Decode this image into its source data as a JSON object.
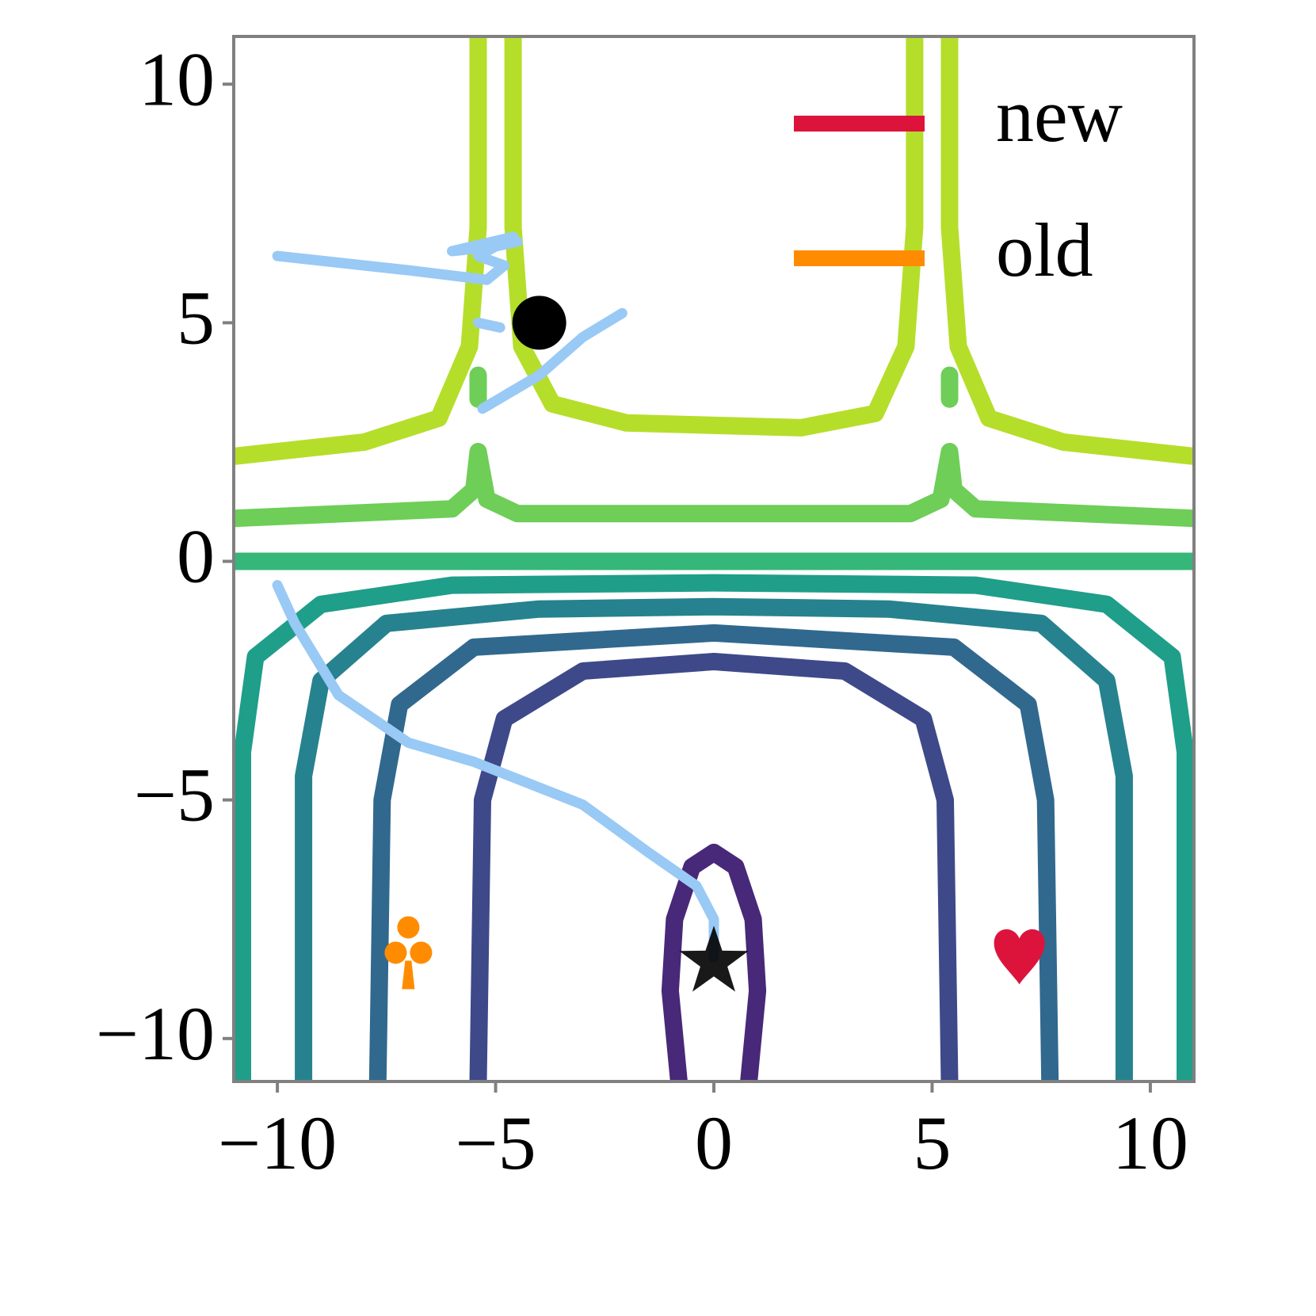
{
  "chart_data": {
    "type": "contour",
    "xlim": [
      -11,
      11
    ],
    "ylim": [
      -10.9,
      11
    ],
    "xticks": [
      {
        "value": -10,
        "label": "−10"
      },
      {
        "value": -5,
        "label": "−5"
      },
      0,
      5,
      10
    ],
    "yticks": [
      {
        "value": -10,
        "label": "−10"
      },
      {
        "value": -5,
        "label": "−5"
      },
      0,
      5,
      10
    ],
    "legend": "upper right",
    "contours": [
      {
        "color": "#b5de2b",
        "x": [
          -11,
          -8,
          -6.3,
          -5.6,
          -5.4,
          -5.4,
          null,
          -4.6,
          -4.6,
          -4.4,
          -3.7,
          -2,
          2,
          3.7,
          4.4,
          4.6,
          4.6,
          null,
          5.4,
          5.4,
          5.6,
          6.3,
          8,
          11
        ],
        "y": [
          2.2,
          2.5,
          3,
          4.5,
          7,
          11,
          null,
          11,
          7,
          4.5,
          3.3,
          2.9,
          2.8,
          3.1,
          4.5,
          7,
          11,
          null,
          11,
          7,
          4.5,
          3,
          2.5,
          2.2
        ]
      },
      {
        "color": "#6ece58",
        "x": [
          -11,
          -6,
          -5.5,
          -5.4,
          null,
          -5.4,
          -5.2,
          -4.5,
          4.5,
          5.2,
          5.4,
          null,
          5.4,
          5.5,
          6,
          11,
          null,
          -5.4,
          -5.4,
          null,
          5.4,
          5.4
        ],
        "y": [
          0.9,
          1.1,
          1.5,
          2.3,
          null,
          2.3,
          1.3,
          1.0,
          1.0,
          1.3,
          2.3,
          null,
          2.3,
          1.5,
          1.1,
          0.9,
          null,
          3.4,
          3.9,
          null,
          3.4,
          3.9
        ]
      },
      {
        "color": "#35b779",
        "x": [
          -11,
          11
        ],
        "y": [
          0,
          0
        ]
      },
      {
        "color": "#1f9e89",
        "x": [
          -10.8,
          -10.8,
          -10.5,
          -9,
          -6,
          0,
          6,
          9,
          10.5,
          10.8,
          10.8
        ],
        "y": [
          -10.9,
          -4,
          -2,
          -0.9,
          -0.5,
          -0.45,
          -0.5,
          -0.9,
          -2,
          -4,
          -10.9
        ]
      },
      {
        "color": "#26828e",
        "x": [
          -9.4,
          -9.4,
          -9,
          -7.5,
          -4,
          0,
          4,
          7.5,
          9,
          9.4,
          9.4
        ],
        "y": [
          -10.9,
          -4.5,
          -2.5,
          -1.3,
          -1.0,
          -0.95,
          -1.0,
          -1.3,
          -2.5,
          -4.5,
          -10.9
        ]
      },
      {
        "color": "#31688e",
        "x": [
          -7.7,
          -7.6,
          -7.2,
          -5.5,
          0,
          5.5,
          7.2,
          7.6,
          7.7
        ],
        "y": [
          -10.9,
          -5,
          -3,
          -1.8,
          -1.5,
          -1.8,
          -3,
          -5,
          -10.9
        ]
      },
      {
        "color": "#3e4989",
        "x": [
          -5.4,
          -5.3,
          -4.8,
          -3,
          0,
          3,
          4.8,
          5.3,
          5.4
        ],
        "y": [
          -10.9,
          -5,
          -3.3,
          -2.3,
          -2.1,
          -2.3,
          -3.3,
          -5,
          -10.9
        ]
      },
      {
        "color": "#482878",
        "x": [
          -0.8,
          -1.0,
          -0.9,
          -0.5,
          0,
          0.5,
          0.9,
          1.0,
          0.8
        ],
        "y": [
          -10.9,
          -9,
          -7.5,
          -6.4,
          -6.1,
          -6.4,
          -7.5,
          -9,
          -10.9
        ]
      }
    ],
    "trajectory": {
      "color": "#99c9f5",
      "x": [
        -10,
        -7,
        -5.2,
        -4.8,
        -5.4,
        -4.6,
        -6,
        -5,
        -4.5,
        null,
        -5.4,
        -4.9,
        null,
        -2.1,
        -3,
        -4,
        -5.3,
        null,
        -10,
        -9.6,
        -8.6,
        -7,
        -5.5,
        -3,
        -1.5,
        -0.4,
        0,
        0
      ],
      "y": [
        6.4,
        6.1,
        5.9,
        6.2,
        6.4,
        6.8,
        6.5,
        6.6,
        6.7,
        null,
        5,
        4.9,
        null,
        5.2,
        4.7,
        3.9,
        3.2,
        null,
        -0.5,
        -1.3,
        -2.8,
        -3.8,
        -4.2,
        -5.1,
        -6.1,
        -6.8,
        -7.5,
        -8.3
      ]
    },
    "points": [
      {
        "x": -4,
        "y": 5,
        "color": "#000000",
        "marker": "circle"
      },
      {
        "x": 0,
        "y": -8.4,
        "color": "#000000",
        "marker": "star"
      }
    ],
    "series": [
      {
        "name": "new",
        "color": "#dc143c",
        "marker": "heart",
        "x": [
          7
        ],
        "y": [
          -8.2
        ]
      },
      {
        "name": "old",
        "color": "#ff8c00",
        "marker": "club",
        "x": [
          -7
        ],
        "y": [
          -8.5
        ]
      }
    ]
  }
}
